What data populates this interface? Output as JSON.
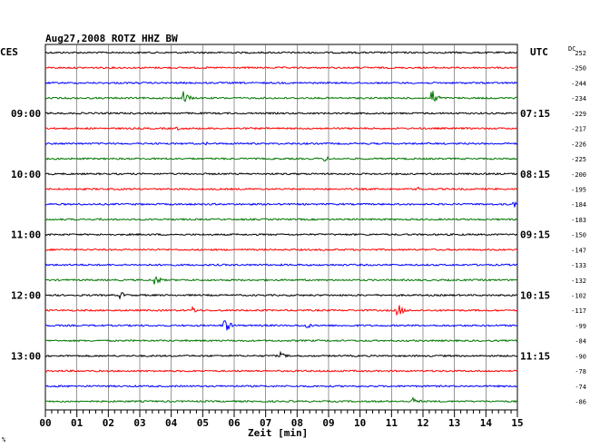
{
  "title": "Aug27,2008   ROTZ HHZ BW",
  "left_zone": "CES",
  "right_zone": "UTC",
  "dc_label": "DC",
  "xlabel": "Zeit [min]",
  "corner_mark": "%",
  "trace_colors": [
    "#000000",
    "#ff0000",
    "#0000ff",
    "#007700"
  ],
  "chart_data": {
    "type": "line",
    "description_of_axes": "helicorder",
    "xlim": [
      0,
      15
    ],
    "x_ticks": [
      "00",
      "01",
      "02",
      "03",
      "04",
      "05",
      "06",
      "07",
      "08",
      "09",
      "10",
      "11",
      "12",
      "13",
      "14",
      "15"
    ],
    "left_hour_labels": [
      {
        "trace": 4,
        "label": "09:00"
      },
      {
        "trace": 8,
        "label": "10:00"
      },
      {
        "trace": 12,
        "label": "11:00"
      },
      {
        "trace": 16,
        "label": "12:00"
      },
      {
        "trace": 20,
        "label": "13:00"
      }
    ],
    "right_time_labels": [
      {
        "trace": 4,
        "label": "07:15"
      },
      {
        "trace": 8,
        "label": "08:15"
      },
      {
        "trace": 12,
        "label": "09:15"
      },
      {
        "trace": 16,
        "label": "10:15"
      },
      {
        "trace": 20,
        "label": "11:15"
      }
    ],
    "dc_offsets": [
      "252",
      "-250",
      "-244",
      "-234",
      "-229",
      "-217",
      "-226",
      "-225",
      "-200",
      "-195",
      "-184",
      "-183",
      "-150",
      "-147",
      "-133",
      "-132",
      "-102",
      "-117",
      "-99",
      "-84",
      "-90",
      "-78",
      "-74",
      "-86"
    ],
    "events": [
      {
        "trace": 3,
        "minute": 4.4,
        "amp": 8
      },
      {
        "trace": 3,
        "minute": 12.3,
        "amp": 9
      },
      {
        "trace": 5,
        "minute": 4.2,
        "amp": 2
      },
      {
        "trace": 6,
        "minute": 5.1,
        "amp": 2
      },
      {
        "trace": 7,
        "minute": 8.9,
        "amp": 3
      },
      {
        "trace": 9,
        "minute": 11.8,
        "amp": 3
      },
      {
        "trace": 10,
        "minute": 14.9,
        "amp": 4
      },
      {
        "trace": 11,
        "minute": 1.8,
        "amp": 2
      },
      {
        "trace": 15,
        "minute": 3.5,
        "amp": 6
      },
      {
        "trace": 16,
        "minute": 2.4,
        "amp": 4
      },
      {
        "trace": 17,
        "minute": 4.7,
        "amp": 4
      },
      {
        "trace": 17,
        "minute": 11.2,
        "amp": 8
      },
      {
        "trace": 18,
        "minute": 5.7,
        "amp": 9
      },
      {
        "trace": 18,
        "minute": 8.3,
        "amp": 4
      },
      {
        "trace": 20,
        "minute": 7.5,
        "amp": 4
      },
      {
        "trace": 23,
        "minute": 11.7,
        "amp": 5
      }
    ]
  }
}
